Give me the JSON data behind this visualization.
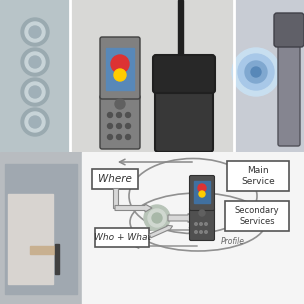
{
  "top_left_color": "#b8c4c8",
  "top_mid_color": "#d0d0ce",
  "top_right_color": "#c8ccd4",
  "diagram_bg": "#f5f5f5",
  "left_photo_color": "#c0c4c8",
  "where_label": "Where",
  "who_label": "Who + What",
  "main_service_label": "Main\nService",
  "secondary_service_label": "Secondary\nServices",
  "profile_label": "Profile",
  "arrow_color": "#888888",
  "box_edge_color": "#555555",
  "fig_bg": "#e8e8e8"
}
